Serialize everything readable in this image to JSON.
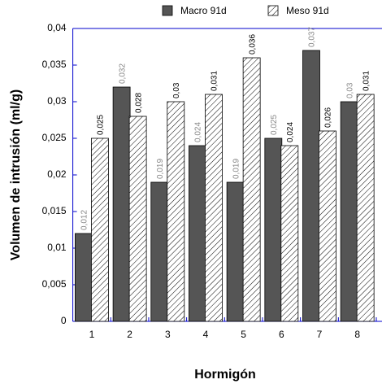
{
  "chart_data": {
    "type": "bar",
    "x_label": "Hormigón",
    "y_label": "Volumen de intrusión (ml/g)",
    "categories": [
      "1",
      "2",
      "3",
      "4",
      "5",
      "6",
      "7",
      "8"
    ],
    "series": [
      {
        "name": "Macro 91d",
        "color": "#555555",
        "label_color": "#888888",
        "values": [
          0.012,
          0.032,
          0.019,
          0.024,
          0.019,
          0.025,
          0.037,
          0.03
        ],
        "value_labels": [
          "0,012",
          "0,032",
          "0,019",
          "0,024",
          "0,019",
          "0,025",
          "0,037",
          "0,03"
        ]
      },
      {
        "name": "Meso 91d",
        "color": "#000000",
        "pattern": "hatch",
        "label_color": "#000000",
        "values": [
          0.025,
          0.028,
          0.03,
          0.031,
          0.036,
          0.024,
          0.026,
          0.031
        ],
        "value_labels": [
          "0,025",
          "0,028",
          "0,03",
          "0,031",
          "0,036",
          "0,024",
          "0,026",
          "0,031"
        ]
      }
    ],
    "ylim": [
      0,
      0.04
    ],
    "yticks": [
      0,
      {
        "value": 0.005,
        "label": "0,005"
      },
      {
        "value": 0.01,
        "label": "0,01"
      },
      {
        "value": 0.015,
        "label": "0,015"
      },
      {
        "value": 0.02,
        "label": "0,02"
      },
      {
        "value": 0.025,
        "label": "0,025"
      },
      {
        "value": 0.03,
        "label": "0,03"
      },
      {
        "value": 0.035,
        "label": "0,035"
      },
      {
        "value": 0.04,
        "label": "0,04"
      }
    ],
    "legend": "top"
  }
}
